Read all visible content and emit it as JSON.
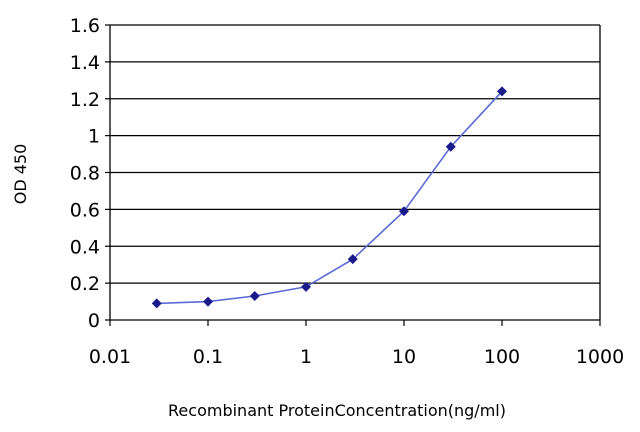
{
  "chart_data": {
    "type": "line",
    "title": "",
    "xlabel": "Recombinant ProteinConcentration(ng/ml)",
    "ylabel": "OD 450",
    "x_scale": "log",
    "xlim": [
      0.01,
      1000
    ],
    "ylim": [
      0,
      1.6
    ],
    "grid": true,
    "legend": "none",
    "x_ticks": [
      "0.01",
      "0.1",
      "1",
      "10",
      "100",
      "1000"
    ],
    "y_ticks": [
      "0",
      "0.2",
      "0.4",
      "0.6",
      "0.8",
      "1",
      "1.2",
      "1.4",
      "1.6"
    ],
    "series": [
      {
        "color": "#1a1a8c",
        "marker": "diamond",
        "x": [
          0.03,
          0.1,
          0.3,
          1,
          3,
          10,
          30,
          100
        ],
        "y": [
          0.09,
          0.1,
          0.13,
          0.18,
          0.33,
          0.59,
          0.94,
          1.24
        ]
      }
    ]
  }
}
